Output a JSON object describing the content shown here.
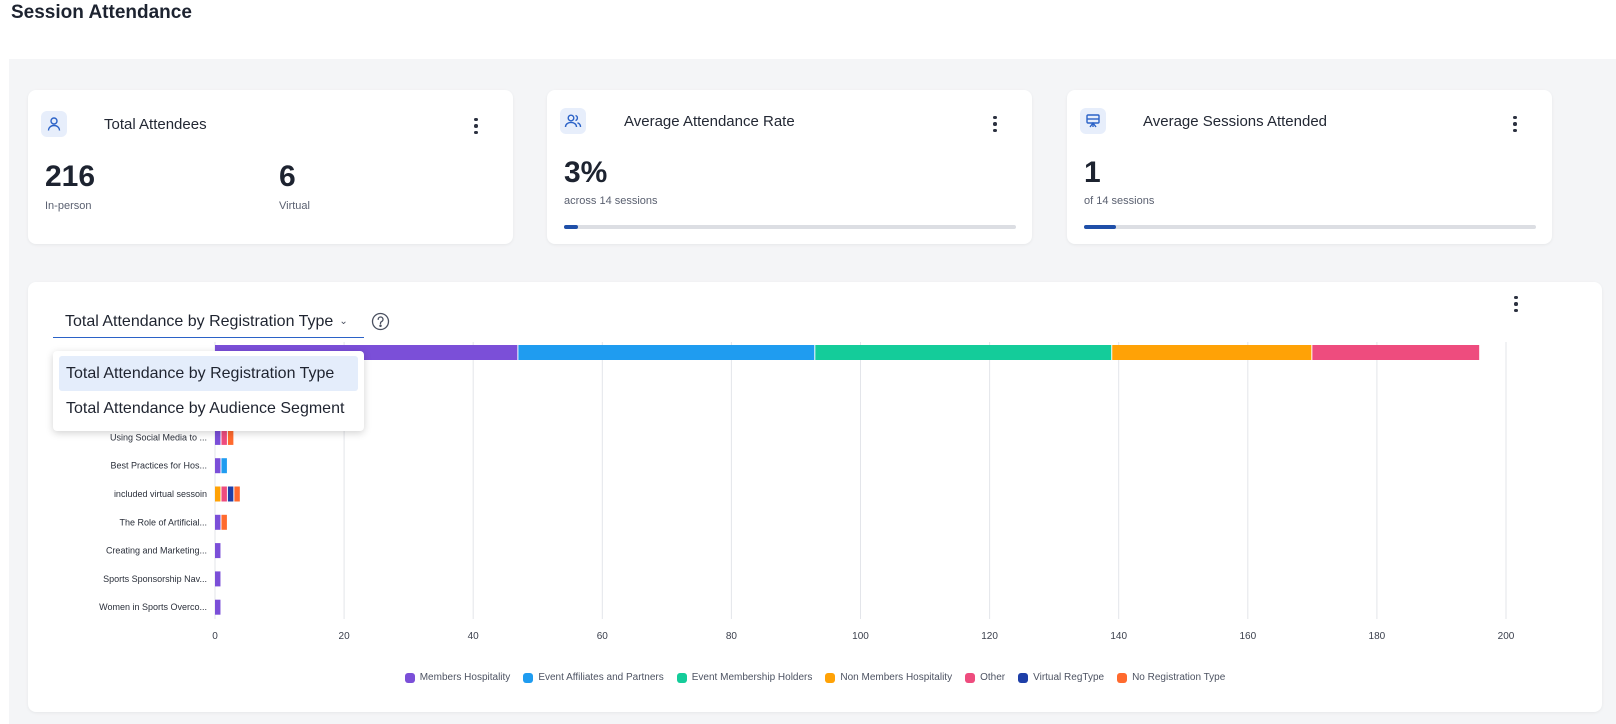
{
  "page": {
    "title": "Session Attendance"
  },
  "cards": {
    "total_attendees": {
      "title": "Total Attendees",
      "icon": "person-icon",
      "in_person": {
        "value": "216",
        "label": "In-person"
      },
      "virtual": {
        "value": "6",
        "label": "Virtual"
      }
    },
    "avg_attendance_rate": {
      "title": "Average Attendance Rate",
      "icon": "people-icon",
      "value": "3%",
      "sub": "across 14 sessions",
      "progress": 0.03
    },
    "avg_sessions_attended": {
      "title": "Average Sessions Attended",
      "icon": "presentation-icon",
      "value": "1",
      "sub": "of 14 sessions",
      "progress": 0.0714
    }
  },
  "chart_panel": {
    "selector": {
      "selected": "Total Attendance by Registration Type",
      "options": [
        "Total Attendance by Registration Type",
        "Total Attendance by Audience Segment"
      ]
    }
  },
  "colors": {
    "Members Hospitality": "#7b4fd8",
    "Event Affiliates and Partners": "#1f9cf0",
    "Event Membership Holders": "#14cc9a",
    "Non Members Hospitality": "#ffa206",
    "Other": "#ee4c7e",
    "Virtual RegType": "#1e3fa8",
    "No Registration Type": "#ff6a2e"
  },
  "chart_data": {
    "type": "bar",
    "orientation": "horizontal",
    "stacked": true,
    "xlim": [
      0,
      200
    ],
    "x_ticks": [
      0,
      20,
      40,
      60,
      80,
      100,
      120,
      140,
      160,
      180,
      200
    ],
    "grid": true,
    "legend_position": "bottom",
    "categories": [
      "",
      "",
      "",
      "Using Social Media to ...",
      "Best Practices for Hos...",
      "included virtual sessoin",
      "The Role of Artificial...",
      "Creating and Marketing...",
      "Sports Sponsorship Nav...",
      "Women in Sports Overco..."
    ],
    "series": [
      {
        "name": "Members Hospitality",
        "values": [
          47,
          0,
          0,
          1,
          1,
          0,
          1,
          1,
          1,
          1
        ]
      },
      {
        "name": "Event Affiliates and Partners",
        "values": [
          46,
          0,
          0,
          0,
          1,
          0,
          0,
          0,
          0,
          0
        ]
      },
      {
        "name": "Event Membership Holders",
        "values": [
          46,
          0,
          0,
          0,
          0,
          0,
          0,
          0,
          0,
          0
        ]
      },
      {
        "name": "Non Members Hospitality",
        "values": [
          31,
          0,
          0,
          0,
          0,
          1,
          0,
          0,
          0,
          0
        ]
      },
      {
        "name": "Other",
        "values": [
          26,
          0,
          0,
          1,
          0,
          1,
          0,
          0,
          0,
          0
        ]
      },
      {
        "name": "Virtual RegType",
        "values": [
          0,
          0,
          0,
          0,
          0,
          1,
          0,
          0,
          0,
          0
        ]
      },
      {
        "name": "No Registration Type",
        "values": [
          0,
          0,
          0,
          1,
          0,
          1,
          1,
          0,
          0,
          0
        ]
      }
    ]
  }
}
